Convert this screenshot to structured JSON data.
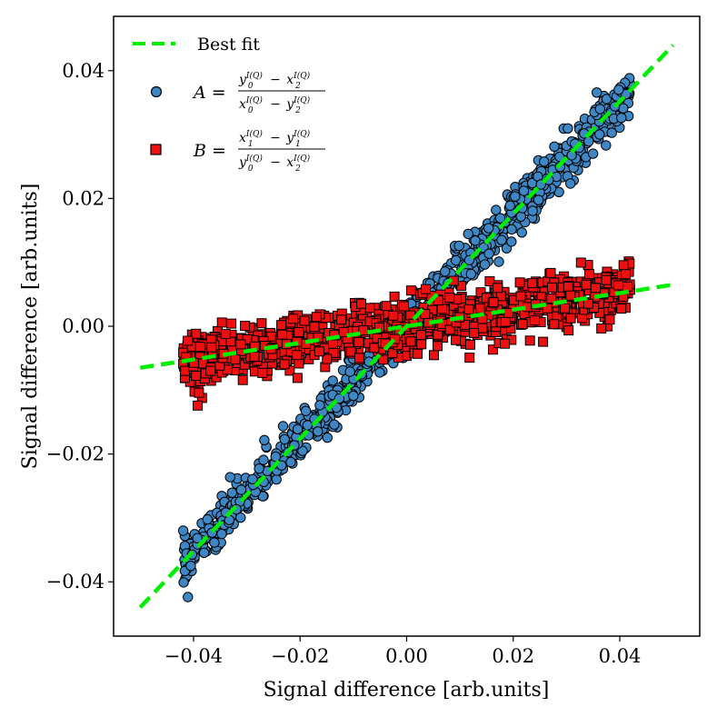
{
  "chart_data": {
    "type": "scatter",
    "title": "",
    "xlabel": "Signal difference [arb.units]",
    "ylabel": "Signal difference [arb.units]",
    "xlim": [
      -0.055,
      0.055
    ],
    "ylim": [
      -0.0485,
      0.0485
    ],
    "xticks": [
      -0.04,
      -0.02,
      0.0,
      0.02,
      0.04
    ],
    "xtick_labels": [
      "−0.04",
      "−0.02",
      "0.00",
      "0.02",
      "0.04"
    ],
    "yticks": [
      -0.04,
      -0.02,
      0.0,
      0.02,
      0.04
    ],
    "ytick_labels": [
      "−0.04",
      "−0.02",
      "0.00",
      "0.02",
      "0.04"
    ],
    "grid": false,
    "legend_position": "top-left",
    "series": [
      {
        "name": "Best fit",
        "kind": "fit-line",
        "style": "dashed",
        "color": "#00ee00",
        "lines": [
          {
            "x": [
              -0.05,
              0.05
            ],
            "y": [
              -0.044,
              0.044
            ]
          },
          {
            "x": [
              -0.05,
              0.05
            ],
            "y": [
              -0.0065,
              0.0065
            ]
          }
        ]
      },
      {
        "name": "A",
        "kind": "scatter",
        "marker": "circle",
        "color": "#3f87c4",
        "x_range": [
          -0.042,
          0.042
        ],
        "slope": 0.88,
        "spread": 0.0018,
        "count": 1000
      },
      {
        "name": "B",
        "kind": "scatter",
        "marker": "square",
        "color": "#ee1010",
        "x_range": [
          -0.042,
          0.042
        ],
        "slope": 0.13,
        "spread": 0.0022,
        "count": 1000
      }
    ],
    "legend": {
      "fit": "Best fit",
      "a_symbol": "A",
      "b_symbol": "B",
      "eq": "=",
      "minus": "−",
      "sup": "I(Q)",
      "a_num_1": "y",
      "a_num_1_sub": "0",
      "a_num_2": "x",
      "a_num_2_sub": "2",
      "a_den_1": "x",
      "a_den_1_sub": "0",
      "a_den_2": "y",
      "a_den_2_sub": "2",
      "b_num_1": "x",
      "b_num_1_sub": "1",
      "b_num_2": "y",
      "b_num_2_sub": "1",
      "b_den_1": "y",
      "b_den_1_sub": "0",
      "b_den_2": "x",
      "b_den_2_sub": "2"
    }
  }
}
